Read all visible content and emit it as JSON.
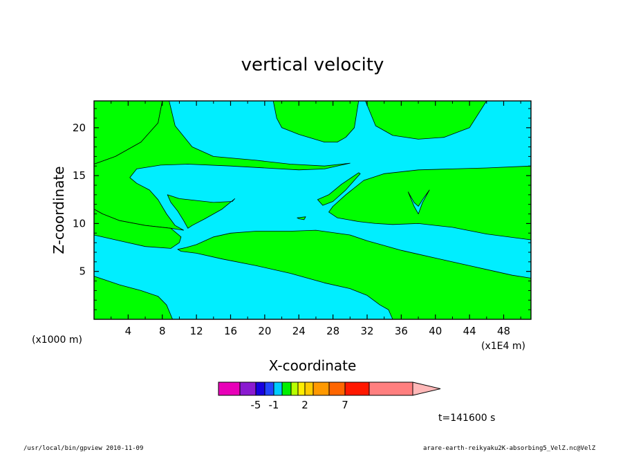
{
  "chart_data": {
    "type": "contour",
    "title": "vertical velocity",
    "xlabel": "X-coordinate",
    "ylabel": "Z-coordinate",
    "x_unit_left": "(x1000 m)",
    "x_unit_right": "(x1E4 m)",
    "xlim": [
      0,
      51.2
    ],
    "ylim": [
      0,
      22.8
    ],
    "x_ticks": [
      "4",
      "8",
      "12",
      "16",
      "20",
      "24",
      "28",
      "32",
      "36",
      "40",
      "44",
      "48"
    ],
    "x_tick_values": [
      4,
      8,
      12,
      16,
      20,
      24,
      28,
      32,
      36,
      40,
      44,
      48
    ],
    "y_ticks": [
      "5",
      "10",
      "15",
      "20"
    ],
    "y_tick_values": [
      5,
      10,
      15,
      20
    ],
    "fill_colors": {
      "positive": "#00ff00",
      "negative": "#00eeff",
      "edge": "#000000"
    },
    "regions": [
      {
        "sign": "positive",
        "points": [
          [
            0,
            16.2
          ],
          [
            2.5,
            17
          ],
          [
            5.5,
            18.5
          ],
          [
            7.5,
            20.5
          ],
          [
            8,
            22.8
          ],
          [
            0,
            22.8
          ]
        ]
      },
      {
        "sign": "positive",
        "points": [
          [
            8.8,
            22.8
          ],
          [
            9.5,
            20.2
          ],
          [
            11.5,
            18
          ],
          [
            14,
            17
          ],
          [
            19,
            16.6
          ],
          [
            23,
            16.2
          ],
          [
            27,
            16
          ],
          [
            30,
            16.3
          ],
          [
            27,
            15.7
          ],
          [
            24,
            15.6
          ],
          [
            20,
            15.8
          ],
          [
            16,
            16
          ],
          [
            11,
            16.2
          ],
          [
            7.8,
            16.1
          ],
          [
            5,
            15.7
          ],
          [
            4.2,
            14.8
          ],
          [
            5,
            14.2
          ],
          [
            6.5,
            13.5
          ],
          [
            7.5,
            12.5
          ],
          [
            8.5,
            11
          ],
          [
            9.5,
            9.8
          ],
          [
            10.5,
            9.3
          ],
          [
            9,
            9.5
          ],
          [
            6,
            9.8
          ],
          [
            3,
            10.3
          ],
          [
            1,
            11
          ],
          [
            0,
            11.5
          ],
          [
            0,
            16.2
          ],
          [
            2.5,
            17
          ],
          [
            5.5,
            18.5
          ],
          [
            7.5,
            20.5
          ],
          [
            8,
            22.8
          ]
        ]
      },
      {
        "sign": "positive",
        "points": [
          [
            21,
            22.8
          ],
          [
            21.4,
            21
          ],
          [
            22,
            20
          ],
          [
            24,
            19.3
          ],
          [
            27,
            18.5
          ],
          [
            28.5,
            18.5
          ],
          [
            29.5,
            19
          ],
          [
            30.5,
            20
          ],
          [
            31,
            22.8
          ]
        ]
      },
      {
        "sign": "positive",
        "points": [
          [
            31.8,
            22.8
          ],
          [
            33,
            20.2
          ],
          [
            35,
            19.2
          ],
          [
            38,
            18.8
          ],
          [
            41,
            19
          ],
          [
            44,
            20
          ],
          [
            46,
            22.8
          ]
        ]
      },
      {
        "sign": "positive",
        "points": [
          [
            0,
            8.8
          ],
          [
            3,
            8.2
          ],
          [
            6,
            7.6
          ],
          [
            9,
            7.4
          ],
          [
            10,
            8
          ],
          [
            10.2,
            8.6
          ],
          [
            9,
            9.5
          ],
          [
            6,
            9.8
          ],
          [
            3,
            10.3
          ],
          [
            1,
            11
          ],
          [
            0,
            11.5
          ]
        ]
      },
      {
        "sign": "positive",
        "points": [
          [
            8.6,
            13
          ],
          [
            10,
            12.6
          ],
          [
            12,
            12.4
          ],
          [
            14,
            12.2
          ],
          [
            16.2,
            12.3
          ],
          [
            16.5,
            12.6
          ],
          [
            15,
            11.5
          ],
          [
            13,
            10.5
          ],
          [
            11.5,
            9.8
          ],
          [
            11,
            9.5
          ],
          [
            10.5,
            10.3
          ],
          [
            9.8,
            11.3
          ],
          [
            9,
            12.2
          ]
        ]
      },
      {
        "sign": "positive",
        "points": [
          [
            9.8,
            7.3
          ],
          [
            10.8,
            7.5
          ],
          [
            12,
            7.8
          ],
          [
            14,
            8.6
          ],
          [
            16,
            9
          ],
          [
            19,
            9.2
          ],
          [
            23,
            9.2
          ],
          [
            26,
            9.3
          ],
          [
            30,
            8.8
          ],
          [
            32,
            8.2
          ],
          [
            34,
            7.7
          ],
          [
            36,
            7.2
          ],
          [
            38,
            6.8
          ],
          [
            41,
            6.2
          ],
          [
            44,
            5.6
          ],
          [
            47,
            5
          ],
          [
            49,
            4.6
          ],
          [
            51.2,
            4.3
          ],
          [
            51.2,
            0
          ],
          [
            35,
            0
          ],
          [
            34.5,
            1
          ],
          [
            33.5,
            1.5
          ],
          [
            32,
            2.5
          ],
          [
            30,
            3.2
          ],
          [
            27,
            3.8
          ],
          [
            23,
            4.8
          ],
          [
            19,
            5.6
          ],
          [
            15,
            6.3
          ],
          [
            12,
            6.9
          ],
          [
            10.2,
            7.1
          ]
        ]
      },
      {
        "sign": "positive",
        "points": [
          [
            0,
            4.5
          ],
          [
            3,
            3.6
          ],
          [
            5.5,
            3
          ],
          [
            7.5,
            2.4
          ],
          [
            8.5,
            1.5
          ],
          [
            9.2,
            0
          ],
          [
            0,
            0
          ]
        ]
      },
      {
        "sign": "positive",
        "points": [
          [
            51.2,
            16
          ],
          [
            46,
            15.8
          ],
          [
            42,
            15.7
          ],
          [
            38,
            15.6
          ],
          [
            34,
            15.2
          ],
          [
            31.6,
            14.5
          ],
          [
            29.5,
            13
          ],
          [
            28,
            11.8
          ],
          [
            27.5,
            11.2
          ],
          [
            28.5,
            10.6
          ],
          [
            31,
            10.2
          ],
          [
            33,
            10
          ],
          [
            35,
            9.9
          ],
          [
            38,
            10
          ],
          [
            42,
            9.6
          ],
          [
            46,
            8.9
          ],
          [
            51.2,
            8.3
          ]
        ]
      },
      {
        "sign": "positive",
        "points": [
          [
            26.2,
            12.5
          ],
          [
            27.5,
            13
          ],
          [
            29,
            14.1
          ],
          [
            31,
            15.3
          ],
          [
            31.2,
            15.2
          ],
          [
            29.5,
            13.5
          ],
          [
            28,
            12.3
          ],
          [
            26.8,
            11.9
          ]
        ]
      },
      {
        "sign": "positive",
        "points": [
          [
            23.8,
            10.6
          ],
          [
            24.8,
            10.7
          ],
          [
            24.6,
            10.4
          ],
          [
            24,
            10.5
          ]
        ]
      },
      {
        "sign": "negative",
        "points": [
          [
            36.8,
            13.3
          ],
          [
            37.5,
            12.2
          ],
          [
            38,
            11.8
          ],
          [
            38.5,
            12.5
          ],
          [
            39.3,
            13.5
          ],
          [
            38.5,
            12.2
          ],
          [
            38,
            11
          ],
          [
            37.5,
            11.8
          ]
        ]
      }
    ],
    "colorbar": {
      "colors": [
        "#e800b8",
        "#8a1ad0",
        "#1700e0",
        "#2246ff",
        "#00ccff",
        "#00f000",
        "#b8ff00",
        "#ffee00",
        "#ffcc00",
        "#ff9900",
        "#ff6600",
        "#ff1800",
        "#ff7f7f",
        "#ffb8b8"
      ],
      "labels": [
        {
          "text": "-5",
          "after_index": 1
        },
        {
          "text": "-1",
          "after_index": 3
        },
        {
          "text": "2",
          "after_index": 7
        },
        {
          "text": "7",
          "after_index": 10
        }
      ]
    },
    "annotations": {
      "time": "t=141600 s",
      "footer_left": "/usr/local/bin/gpview  2010-11-09",
      "footer_right": "arare-earth-reikyaku2K-absorbing5_VelZ.nc@VelZ"
    }
  }
}
